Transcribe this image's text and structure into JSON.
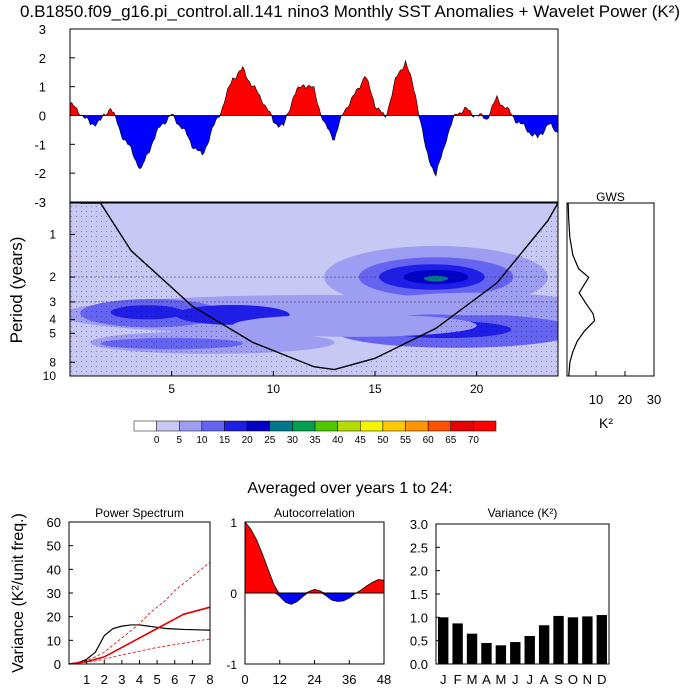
{
  "title": "0.B1850.f09_g16.pi_control.all.141 nino3 Monthly SST Anomalies + Wavelet Power (K²)",
  "subtitle": "Averaged over years 1 to 24:",
  "colors": {
    "positive": "#ff0000",
    "negative": "#0000ff",
    "black": "#000000"
  },
  "chart_data": [
    {
      "name": "sst-anomaly",
      "type": "area",
      "x": [
        0,
        0.5,
        1,
        1.5,
        2,
        2.5,
        3,
        3.5,
        4,
        4.5,
        5,
        5.5,
        6,
        6.5,
        7,
        7.5,
        8,
        8.5,
        9,
        9.5,
        10,
        10.5,
        11,
        11.5,
        12,
        12.5,
        13,
        13.5,
        14,
        14.5,
        15,
        15.5,
        16,
        16.5,
        17,
        17.5,
        18,
        18.5,
        19,
        19.5,
        20,
        20.5,
        21,
        21.5,
        22,
        22.5,
        23,
        23.5,
        24
      ],
      "values": [
        0.4,
        0.1,
        -0.3,
        -0.2,
        0.3,
        -0.6,
        -1.2,
        -1.9,
        -1.0,
        -0.3,
        0,
        -0.4,
        -1.0,
        -1.4,
        -0.5,
        0.3,
        1.3,
        1.6,
        1.0,
        0.5,
        -0.2,
        -0.4,
        0.7,
        1.1,
        0.9,
        -0.3,
        -0.8,
        0.2,
        0.7,
        1.4,
        0.4,
        -0.1,
        1.2,
        1.9,
        0.7,
        -1.2,
        -2.1,
        -0.8,
        0.1,
        0.2,
        0,
        -0.1,
        0.6,
        0.2,
        -0.2,
        -0.5,
        -0.8,
        -0.3,
        -0.6
      ],
      "ylim": [
        -3,
        3
      ],
      "yticks": [
        "-3",
        "-2",
        "-1",
        "0",
        "1",
        "2",
        "3"
      ]
    },
    {
      "name": "wavelet-power",
      "type": "heatmap",
      "xlabel": "",
      "ylabel": "Period (years)",
      "xticks": [
        "5",
        "10",
        "15",
        "20"
      ],
      "yticks": [
        "1",
        "2",
        "3",
        "4",
        "5",
        "8",
        "10"
      ],
      "xlim": [
        0,
        24
      ],
      "period_range": [
        0.6,
        10
      ],
      "colorbar_labels": [
        "0",
        "5",
        "10",
        "15",
        "20",
        "25",
        "30",
        "35",
        "40",
        "45",
        "50",
        "55",
        "60",
        "65",
        "70"
      ],
      "colorbar_colors": [
        "#ffffff",
        "#c8c8f5",
        "#9d9df2",
        "#6464f0",
        "#1e1ee6",
        "#0000c8",
        "#00788c",
        "#00a050",
        "#50c800",
        "#b4dc00",
        "#f5f500",
        "#ffc800",
        "#ff9600",
        "#ff5000",
        "#e60000",
        "#ff0000"
      ]
    },
    {
      "name": "global-wavelet-spectrum",
      "type": "line",
      "title": "GWS",
      "xlabel": "K²",
      "xticks": [
        "10",
        "20",
        "30"
      ],
      "xlim": [
        0,
        30
      ]
    },
    {
      "name": "power-spectrum",
      "type": "line",
      "title": "Power Spectrum",
      "ylabel": "Variance (K²/unit freq.)",
      "x": [
        0,
        0.5,
        1,
        1.5,
        2,
        2.5,
        3,
        3.5,
        4,
        4.5,
        5,
        5.5,
        6,
        6.5,
        7,
        7.5,
        8
      ],
      "ylim": [
        0,
        60
      ],
      "xlim": [
        0,
        8
      ],
      "yticks": [
        "0",
        "10",
        "20",
        "30",
        "40",
        "50",
        "60"
      ],
      "xticks": [
        "1",
        "2",
        "3",
        "4",
        "5",
        "6",
        "7",
        "8"
      ],
      "series": [
        {
          "values": [
            0,
            0.5,
            2,
            5,
            12,
            15,
            16,
            16.5,
            16.5,
            16,
            15.5,
            15,
            14.8,
            14.6,
            14.5,
            14.4,
            14.3
          ]
        },
        {
          "values": [
            0,
            0.5,
            1,
            2,
            3,
            5,
            7,
            9,
            11,
            13,
            15,
            17,
            19,
            21,
            22,
            23,
            24
          ]
        },
        {
          "values": [
            0,
            0.5,
            1.5,
            3,
            5,
            8,
            11,
            14,
            17,
            21,
            24,
            27,
            31,
            34,
            37,
            40,
            43
          ]
        },
        {
          "values": [
            0,
            0.3,
            0.8,
            1.3,
            2,
            3,
            3.8,
            4.6,
            5.4,
            6.2,
            7,
            7.6,
            8.2,
            8.8,
            9.4,
            10,
            10.6
          ]
        }
      ]
    },
    {
      "name": "autocorrelation",
      "type": "area",
      "title": "Autocorrelation",
      "x": [
        0,
        2,
        4,
        6,
        8,
        10,
        12,
        14,
        16,
        18,
        20,
        22,
        24,
        26,
        28,
        30,
        32,
        34,
        36,
        38,
        40,
        42,
        44,
        46,
        48
      ],
      "values": [
        1.0,
        0.9,
        0.75,
        0.55,
        0.33,
        0.12,
        -0.05,
        -0.13,
        -0.16,
        -0.12,
        -0.05,
        0.02,
        0.05,
        0.03,
        -0.04,
        -0.1,
        -0.12,
        -0.11,
        -0.07,
        -0.01,
        0.04,
        0.1,
        0.15,
        0.19,
        0.18
      ],
      "ylim": [
        -1,
        1
      ],
      "yticks": [
        "-1",
        "0",
        "1"
      ],
      "xticks": [
        "0",
        "12",
        "24",
        "36",
        "48"
      ]
    },
    {
      "name": "variance",
      "type": "bar",
      "title": "Variance (K²)",
      "categories": [
        "J",
        "F",
        "M",
        "A",
        "M",
        "J",
        "J",
        "A",
        "S",
        "O",
        "N",
        "D"
      ],
      "values": [
        1.0,
        0.87,
        0.65,
        0.45,
        0.4,
        0.47,
        0.6,
        0.83,
        1.03,
        1.0,
        1.02,
        1.05
      ],
      "ylim": [
        0,
        3
      ],
      "yticks": [
        "0.0",
        "0.5",
        "1.0",
        "1.5",
        "2.0",
        "2.5",
        "3.0"
      ]
    }
  ]
}
